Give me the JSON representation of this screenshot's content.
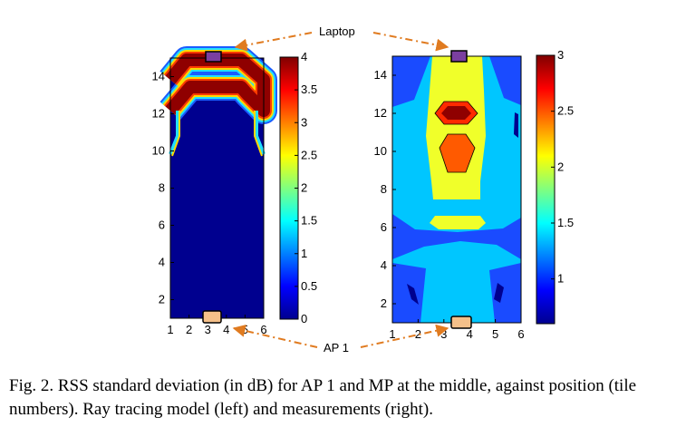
{
  "annotations": {
    "top": "Laptop",
    "bottom": "AP 1",
    "arrow_color": "#e07b20",
    "top_marker_color": "#7b3fa0",
    "bottom_marker_color": "#f5c08a"
  },
  "caption": "Fig. 2. RSS standard deviation (in dB) for AP 1 and MP at the middle, against position (tile numbers). Ray tracing model (left) and measurements (right).",
  "chart_data": [
    {
      "type": "heatmap",
      "subtitle": "",
      "x": [
        1,
        2,
        3,
        4,
        5,
        6
      ],
      "xlim": [
        1,
        6
      ],
      "xticks": [
        "1",
        "2",
        "3",
        "4",
        "5",
        "6"
      ],
      "ylim": [
        1,
        15
      ],
      "yticks": [
        "2",
        "4",
        "6",
        "8",
        "10",
        "12",
        "14"
      ],
      "colorbar": {
        "min": 0,
        "max": 4,
        "ticks": [
          "0",
          "0.5",
          "1",
          "1.5",
          "2",
          "2.5",
          "3",
          "3.5",
          "4"
        ]
      },
      "regions": [
        {
          "description": "high band (inverted V)",
          "level": 4.0
        },
        {
          "description": "background",
          "level": 0.0
        }
      ]
    },
    {
      "type": "heatmap",
      "x": [
        1,
        2,
        3,
        4,
        5,
        6
      ],
      "xlim": [
        1,
        6
      ],
      "xticks": [
        "1",
        "2",
        "3",
        "4",
        "5",
        "6"
      ],
      "ylim": [
        1,
        15
      ],
      "yticks": [
        "2",
        "4",
        "6",
        "8",
        "10",
        "12",
        "14"
      ],
      "colorbar": {
        "min": 0.6,
        "max": 3.0,
        "ticks": [
          "1",
          "1.5",
          "2",
          "2.5",
          "3"
        ]
      },
      "regions": [
        {
          "description": "background",
          "level": 1.5
        },
        {
          "description": "low band",
          "level": 0.8
        },
        {
          "description": "central column",
          "level": 2.0
        },
        {
          "description": "core near y=10",
          "level": 2.5
        },
        {
          "description": "peak near y=12",
          "level": 3.0
        }
      ]
    }
  ]
}
